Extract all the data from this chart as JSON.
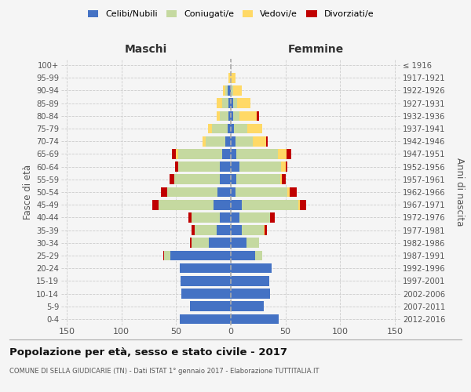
{
  "age_groups": [
    "0-4",
    "5-9",
    "10-14",
    "15-19",
    "20-24",
    "25-29",
    "30-34",
    "35-39",
    "40-44",
    "45-49",
    "50-54",
    "55-59",
    "60-64",
    "65-69",
    "70-74",
    "75-79",
    "80-84",
    "85-89",
    "90-94",
    "95-99",
    "100+"
  ],
  "birth_years": [
    "2012-2016",
    "2007-2011",
    "2002-2006",
    "1997-2001",
    "1992-1996",
    "1987-1991",
    "1982-1986",
    "1977-1981",
    "1972-1976",
    "1967-1971",
    "1962-1966",
    "1957-1961",
    "1952-1956",
    "1947-1951",
    "1942-1946",
    "1937-1941",
    "1932-1936",
    "1927-1931",
    "1922-1926",
    "1917-1921",
    "≤ 1916"
  ],
  "maschi": {
    "celibi": [
      47,
      37,
      45,
      46,
      47,
      55,
      20,
      13,
      10,
      16,
      12,
      10,
      10,
      8,
      5,
      3,
      2,
      2,
      3,
      0,
      0
    ],
    "coniugati": [
      0,
      0,
      0,
      0,
      0,
      6,
      16,
      20,
      26,
      50,
      46,
      42,
      38,
      40,
      18,
      14,
      8,
      6,
      2,
      0,
      0
    ],
    "vedovi": [
      0,
      0,
      0,
      0,
      0,
      0,
      0,
      0,
      0,
      0,
      0,
      0,
      0,
      2,
      3,
      4,
      3,
      5,
      2,
      2,
      0
    ],
    "divorziati": [
      0,
      0,
      0,
      0,
      0,
      1,
      1,
      3,
      3,
      6,
      6,
      4,
      3,
      4,
      0,
      0,
      0,
      0,
      0,
      0,
      0
    ]
  },
  "femmine": {
    "nubili": [
      44,
      30,
      36,
      35,
      37,
      22,
      14,
      10,
      8,
      10,
      4,
      5,
      8,
      5,
      4,
      3,
      2,
      2,
      0,
      0,
      0
    ],
    "coniugate": [
      0,
      0,
      0,
      0,
      0,
      7,
      12,
      20,
      28,
      52,
      48,
      40,
      38,
      38,
      16,
      12,
      6,
      4,
      2,
      0,
      0
    ],
    "vedove": [
      0,
      0,
      0,
      0,
      0,
      0,
      0,
      1,
      0,
      1,
      2,
      2,
      4,
      8,
      12,
      14,
      16,
      12,
      8,
      4,
      0
    ],
    "divorziate": [
      0,
      0,
      0,
      0,
      0,
      0,
      0,
      2,
      4,
      6,
      6,
      3,
      2,
      4,
      2,
      0,
      2,
      0,
      0,
      0,
      0
    ]
  },
  "colors": {
    "celibi_nubili": "#4472C4",
    "coniugati": "#C5D9A0",
    "vedovi": "#FFD966",
    "divorziati": "#C00000"
  },
  "xlim": 155,
  "title": "Popolazione per età, sesso e stato civile - 2017",
  "subtitle": "COMUNE DI SELLA GIUDICARIE (TN) - Dati ISTAT 1° gennaio 2017 - Elaborazione TUTTITALIA.IT",
  "ylabel_left": "Fasce di età",
  "ylabel_right": "Anni di nascita",
  "xlabel_left": "Maschi",
  "xlabel_right": "Femmine",
  "background_color": "#f5f5f5",
  "grid_color": "#cccccc"
}
